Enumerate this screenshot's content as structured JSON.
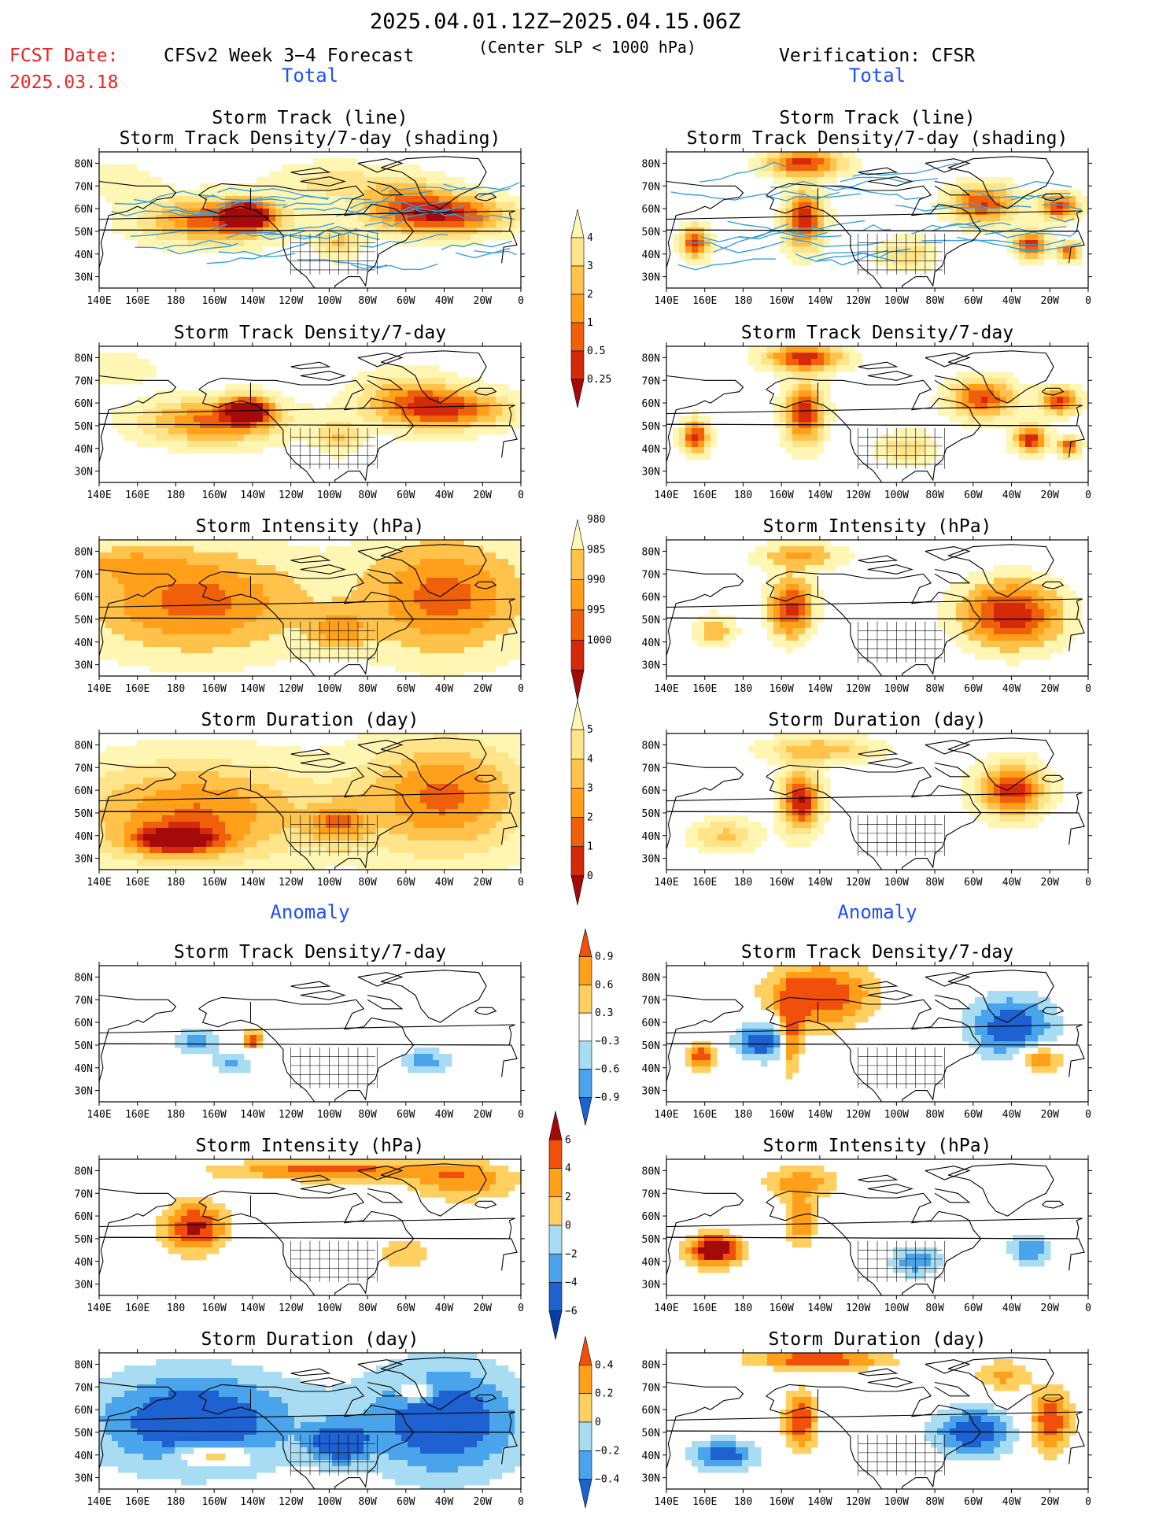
{
  "header": {
    "date_range": "2025.04.01.12Z−2025.04.15.06Z",
    "fcst_label": "FCST Date:",
    "fcst_date": "2025.03.18",
    "model": "CFSv2 Week 3−4 Forecast",
    "criteria": "(Center SLP < 1000 hPa)",
    "verification": "Verification: CFSR"
  },
  "sections": {
    "total": "Total",
    "anomaly": "Anomaly"
  },
  "colors": {
    "fcst_red": "#e8262a",
    "section_blue": "#1f4fff",
    "track_line": "#3aa0e0"
  },
  "panel_titles": {
    "track": [
      "Storm Track (line)",
      "Storm Track Density/7-day (shading)"
    ],
    "density": "Storm Track Density/7-day",
    "intensity": "Storm Intensity (hPa)",
    "duration": "Storm Duration (day)"
  },
  "chart_data": {
    "type": "heatmap",
    "description_of_axes": "longitude 140E to 0, latitude 25N-85N",
    "x_ticks": [
      "140E",
      "160E",
      "180",
      "160W",
      "140W",
      "120W",
      "100W",
      "80W",
      "60W",
      "40W",
      "20W",
      "0"
    ],
    "y_ticks": [
      "30N",
      "40N",
      "50N",
      "60N",
      "70N",
      "80N"
    ],
    "xlim": [
      140,
      360
    ],
    "ylim": [
      25,
      85
    ],
    "colorbars": [
      {
        "id": "density_total",
        "labels": [
          "0.25",
          "0.5",
          "1",
          "2",
          "3",
          "4"
        ],
        "colors": [
          "#fff6b4",
          "#ffe48a",
          "#ffc24a",
          "#ff9f1a",
          "#f0600a",
          "#d42a0a",
          "#a40a0a"
        ]
      },
      {
        "id": "intensity_total",
        "labels": [
          "1000",
          "995",
          "990",
          "985",
          "980"
        ],
        "colors": [
          "#fff6b4",
          "#ffc24a",
          "#ff9f1a",
          "#f0600a",
          "#d42a0a",
          "#a40a0a"
        ]
      },
      {
        "id": "duration_total",
        "labels": [
          "0",
          "1",
          "2",
          "3",
          "4",
          "5"
        ],
        "colors": [
          "#fff6b4",
          "#ffe48a",
          "#ffc24a",
          "#ff9f1a",
          "#f0600a",
          "#d42a0a",
          "#a40a0a"
        ]
      },
      {
        "id": "density_anom",
        "labels": [
          "0.9",
          "0.6",
          "0.3",
          "−0.3",
          "−0.6",
          "−0.9"
        ],
        "colors": [
          "#f0500a",
          "#ff9f1a",
          "#ffd060",
          "#ffffff",
          "#a8dcf2",
          "#4aa4ec",
          "#1d62d0"
        ]
      },
      {
        "id": "intensity_anom",
        "labels": [
          "6",
          "4",
          "2",
          "0",
          "−2",
          "−4",
          "−6"
        ],
        "colors": [
          "#a40a0a",
          "#f0500a",
          "#ff9f1a",
          "#ffd060",
          "#a8dcf2",
          "#4aa4ec",
          "#1d62d0",
          "#0a3ca8"
        ]
      },
      {
        "id": "duration_anom",
        "labels": [
          "0.4",
          "0.2",
          "0",
          "−0.2",
          "−0.4"
        ],
        "colors": [
          "#f0500a",
          "#ff9f1a",
          "#ffd060",
          "#a8dcf2",
          "#4aa4ec",
          "#1d62d0"
        ]
      }
    ],
    "panels": [
      {
        "id": "L1",
        "column": "CFSv2",
        "title_key": "track",
        "colorbar": "density_total",
        "lines": true,
        "blobs": [
          [
            -160,
            55,
            26,
            7,
            3.2
          ],
          [
            -142,
            57,
            8,
            4,
            4.2
          ],
          [
            -35,
            57,
            22,
            6,
            3.2
          ],
          [
            -95,
            45,
            8,
            5,
            1.6
          ],
          [
            -60,
            62,
            18,
            8,
            2.2
          ],
          [
            150,
            72,
            14,
            5,
            0.9
          ],
          [
            -100,
            72,
            22,
            6,
            1.1
          ]
        ]
      },
      {
        "id": "R1",
        "column": "CFSR",
        "title_key": "track",
        "colorbar": "density_total",
        "lines": true,
        "blobs": [
          [
            -148,
            80,
            14,
            4,
            3.6
          ],
          [
            -148,
            55,
            7,
            9,
            3.8
          ],
          [
            -55,
            62,
            12,
            6,
            3.4
          ],
          [
            -15,
            61,
            7,
            4,
            3.6
          ],
          [
            -30,
            44,
            6,
            4,
            3.8
          ],
          [
            -10,
            41,
            4,
            3,
            3.2
          ],
          [
            155,
            45,
            5,
            5,
            3.6
          ],
          [
            -95,
            40,
            10,
            5,
            1.5
          ]
        ]
      },
      {
        "id": "L2",
        "column": "CFSv2",
        "title_key": "density",
        "colorbar": "density_total",
        "lines": false,
        "blobs": [
          [
            -160,
            52,
            26,
            7,
            3.0
          ],
          [
            -142,
            57,
            8,
            4,
            4.3
          ],
          [
            -35,
            57,
            22,
            6,
            3.0
          ],
          [
            -95,
            45,
            8,
            5,
            1.5
          ],
          [
            -60,
            62,
            18,
            8,
            2.0
          ],
          [
            150,
            75,
            14,
            5,
            0.9
          ]
        ]
      },
      {
        "id": "R2",
        "column": "CFSR",
        "title_key": "density",
        "colorbar": "density_total",
        "lines": false,
        "blobs": [
          [
            -148,
            80,
            14,
            4,
            3.8
          ],
          [
            -148,
            55,
            7,
            9,
            3.9
          ],
          [
            -55,
            62,
            12,
            6,
            3.4
          ],
          [
            -15,
            61,
            7,
            4,
            3.6
          ],
          [
            -30,
            44,
            6,
            4,
            3.9
          ],
          [
            -10,
            41,
            4,
            3,
            3.3
          ],
          [
            155,
            45,
            5,
            5,
            3.8
          ],
          [
            -95,
            40,
            10,
            5,
            1.5
          ]
        ]
      },
      {
        "id": "L3",
        "column": "CFSv2",
        "title_key": "intensity",
        "colorbar": "intensity_total",
        "lines": false,
        "blobs": [
          [
            -170,
            58,
            40,
            16,
            2.4
          ],
          [
            -40,
            60,
            30,
            18,
            2.4
          ],
          [
            -95,
            45,
            10,
            6,
            1.5
          ],
          [
            150,
            75,
            20,
            5,
            1.0
          ]
        ]
      },
      {
        "id": "R3",
        "column": "CFSR",
        "title_key": "intensity",
        "colorbar": "intensity_total",
        "lines": false,
        "blobs": [
          [
            -155,
            55,
            8,
            9,
            3.0
          ],
          [
            -40,
            52,
            18,
            10,
            3.3
          ],
          [
            -150,
            78,
            16,
            4,
            1.6
          ],
          [
            165,
            45,
            8,
            5,
            1.3
          ]
        ]
      },
      {
        "id": "L4",
        "column": "CFSv2",
        "title_key": "duration",
        "colorbar": "duration_total",
        "lines": false,
        "blobs": [
          [
            -170,
            50,
            45,
            16,
            2.8
          ],
          [
            -40,
            57,
            30,
            18,
            2.9
          ],
          [
            -95,
            45,
            10,
            6,
            2.0
          ],
          [
            180,
            38,
            15,
            4,
            3.8
          ]
        ]
      },
      {
        "id": "R4",
        "column": "CFSR",
        "title_key": "duration",
        "colorbar": "duration_total",
        "lines": false,
        "blobs": [
          [
            -150,
            55,
            7,
            9,
            4.0
          ],
          [
            -40,
            60,
            12,
            8,
            3.8
          ],
          [
            -140,
            78,
            20,
            4,
            2.0
          ],
          [
            170,
            40,
            12,
            5,
            1.7
          ]
        ]
      },
      {
        "id": "L5",
        "column": "CFSv2",
        "title_key": "density",
        "colorbar": "density_anom",
        "lines": false,
        "blobs": [
          [
            -140,
            52,
            4,
            3,
            2.2
          ],
          [
            -170,
            52,
            8,
            4,
            -1.6
          ],
          [
            -150,
            42,
            8,
            4,
            -1.3
          ],
          [
            -50,
            43,
            10,
            4,
            -1.5
          ]
        ]
      },
      {
        "id": "R5",
        "column": "CFSR",
        "title_key": "density",
        "colorbar": "density_anom",
        "lines": false,
        "blobs": [
          [
            -140,
            72,
            20,
            10,
            2.4
          ],
          [
            -155,
            55,
            4,
            12,
            2.4
          ],
          [
            -170,
            52,
            10,
            6,
            -2.5
          ],
          [
            -40,
            58,
            16,
            10,
            -2.4
          ],
          [
            -25,
            44,
            8,
            4,
            2.3
          ],
          [
            158,
            45,
            5,
            4,
            2.3
          ]
        ]
      },
      {
        "id": "L6",
        "column": "CFSv2",
        "title_key": "intensity",
        "colorbar": "intensity_anom",
        "lines": false,
        "blobs": [
          [
            -170,
            55,
            12,
            8,
            2.6
          ],
          [
            -100,
            80,
            40,
            3,
            2.2
          ],
          [
            -30,
            75,
            20,
            6,
            1.6
          ],
          [
            -60,
            43,
            10,
            5,
            1.2
          ],
          [
            -95,
            40,
            10,
            5,
            0.6
          ]
        ]
      },
      {
        "id": "R6",
        "column": "CFSR",
        "title_key": "intensity",
        "colorbar": "intensity_anom",
        "lines": false,
        "blobs": [
          [
            165,
            45,
            10,
            5,
            3.4
          ],
          [
            -150,
            58,
            6,
            8,
            1.8
          ],
          [
            -90,
            40,
            10,
            5,
            -1.6
          ],
          [
            -30,
            45,
            8,
            5,
            -1.8
          ],
          [
            -150,
            75,
            15,
            5,
            1.5
          ]
        ]
      },
      {
        "id": "L7",
        "column": "CFSv2",
        "title_key": "duration",
        "colorbar": "duration_anom",
        "lines": false,
        "blobs": [
          [
            -170,
            55,
            40,
            16,
            -2.5
          ],
          [
            -40,
            55,
            30,
            18,
            -2.5
          ],
          [
            -160,
            40,
            12,
            3,
            2.4
          ],
          [
            -55,
            68,
            5,
            3,
            2.4
          ],
          [
            -95,
            45,
            10,
            6,
            -2.2
          ]
        ]
      },
      {
        "id": "R7",
        "column": "CFSR",
        "title_key": "duration",
        "colorbar": "duration_anom",
        "lines": false,
        "blobs": [
          [
            -150,
            55,
            6,
            9,
            2.5
          ],
          [
            -140,
            82,
            25,
            3,
            2.4
          ],
          [
            -20,
            55,
            8,
            10,
            2.3
          ],
          [
            -60,
            50,
            15,
            8,
            -2.4
          ],
          [
            170,
            40,
            12,
            5,
            -2.3
          ],
          [
            -45,
            75,
            10,
            5,
            1.4
          ]
        ]
      }
    ]
  }
}
